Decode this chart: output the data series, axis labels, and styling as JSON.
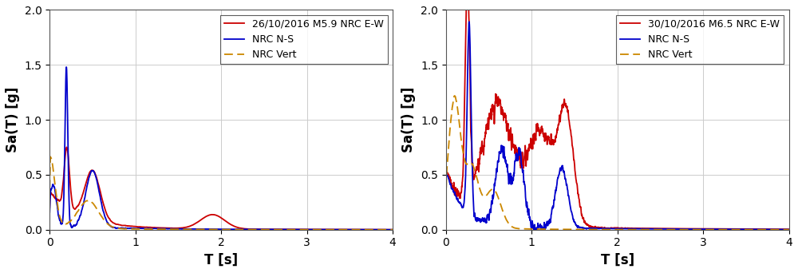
{
  "figsize": [
    10.0,
    3.42
  ],
  "dpi": 100,
  "background_color": "#ffffff",
  "subplots": [
    {
      "legend_label_ew": "26/10/2016 M5.9 NRC E-W",
      "legend_label_ns": "NRC N-S",
      "legend_label_vert": "NRC Vert",
      "xlabel": "T [s]",
      "ylabel": "Sa(T) [g]",
      "xlim": [
        0,
        4
      ],
      "ylim": [
        0,
        2
      ],
      "yticks": [
        0,
        0.5,
        1.0,
        1.5,
        2.0
      ],
      "xticks": [
        0,
        1,
        2,
        3,
        4
      ]
    },
    {
      "legend_label_ew": "30/10/2016 M6.5 NRC E-W",
      "legend_label_ns": "NRC N-S",
      "legend_label_vert": "NRC Vert",
      "xlabel": "T [s]",
      "ylabel": "Sa(T) [g]",
      "xlim": [
        0,
        4
      ],
      "ylim": [
        0,
        2
      ],
      "yticks": [
        0,
        0.5,
        1.0,
        1.5,
        2.0
      ],
      "xticks": [
        0,
        1,
        2,
        3,
        4
      ]
    }
  ],
  "color_ew": "#cc0000",
  "color_ns": "#0000cc",
  "color_vert": "#cc8800",
  "lw": 1.3,
  "grid_color": "#cccccc",
  "legend_fontsize": 9
}
